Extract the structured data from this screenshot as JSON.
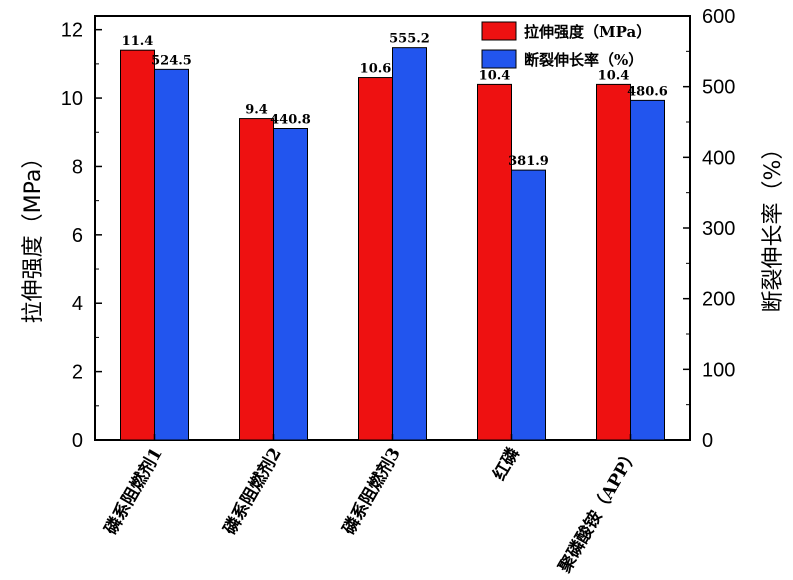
{
  "colors": {
    "tensile": "#ee1111",
    "elongation": "#2255ee"
  },
  "chart_data": {
    "type": "bar",
    "categories": [
      "磷系阻燃剂1",
      "磷系阻燃剂2",
      "磷系阻燃剂3",
      "红磷",
      "聚磷酸铵（APP）"
    ],
    "series": [
      {
        "name": "拉伸强度（MPa）",
        "axis": "left",
        "values": [
          11.4,
          9.4,
          10.6,
          10.4,
          10.4
        ],
        "labels": [
          "11.4",
          "9.4",
          "10.6",
          "10.4",
          "10.4"
        ]
      },
      {
        "name": "断裂伸长率（%）",
        "axis": "right",
        "values": [
          524.5,
          440.8,
          555.2,
          381.9,
          480.6
        ],
        "labels": [
          "524.5",
          "440.8",
          "555.2",
          "381.9",
          "480.6"
        ]
      }
    ],
    "ylabel": "拉伸强度（MPa）",
    "y2label": "断裂伸长率（%）",
    "ylim": [
      0,
      12.4
    ],
    "y2lim": [
      0,
      600
    ],
    "yticks": [
      "0",
      "2",
      "4",
      "6",
      "8",
      "10",
      "12"
    ],
    "y2ticks": [
      "0",
      "100",
      "200",
      "300",
      "400",
      "500",
      "600"
    ],
    "legend": "top-right",
    "grid": false
  }
}
